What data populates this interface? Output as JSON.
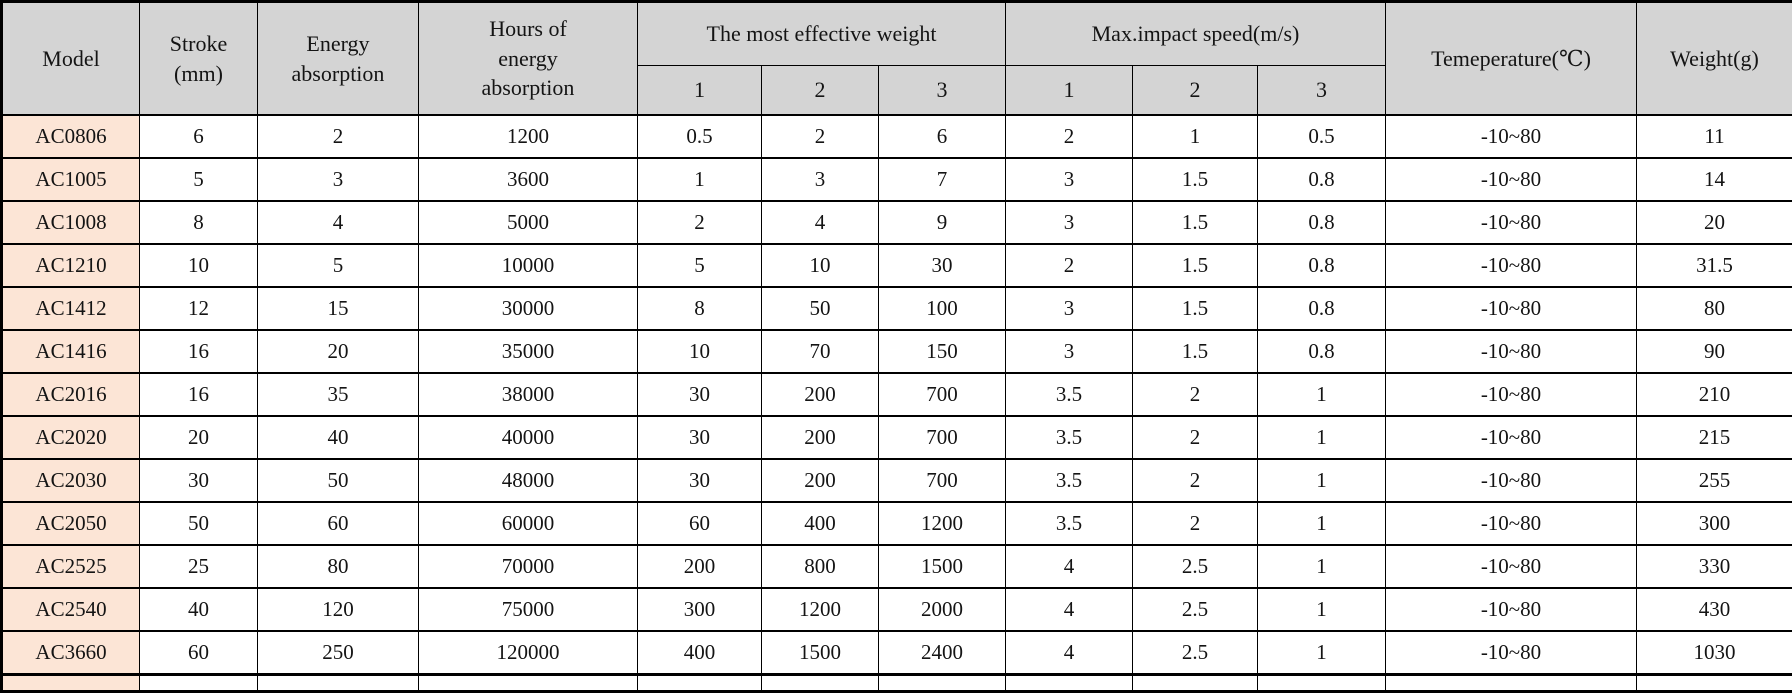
{
  "colors": {
    "header_bg": "#d4d4d4",
    "model_column_bg": "#fce5d6",
    "row_bg": "#ffffff",
    "border": "#000000",
    "text": "#141414"
  },
  "table": {
    "header": {
      "model": "Model",
      "stroke": "Stroke\n(mm)",
      "energy": "Energy\nabsorption",
      "hours": "Hours of\nenergy\nabsorption",
      "effective_weight_group": "The most effective weight",
      "impact_speed_group": "Max.impact speed(m/s)",
      "sub_labels": [
        "1",
        "2",
        "3"
      ],
      "temperature": "Temeperature(℃)",
      "weight": "Weight(g)"
    },
    "rows": [
      {
        "model": "AC0806",
        "stroke": "6",
        "energy": "2",
        "hours": "1200",
        "effective_weight": [
          "0.5",
          "2",
          "6"
        ],
        "impact_speed": [
          "2",
          "1",
          "0.5"
        ],
        "temperature": "-10~80",
        "weight": "11"
      },
      {
        "model": "AC1005",
        "stroke": "5",
        "energy": "3",
        "hours": "3600",
        "effective_weight": [
          "1",
          "3",
          "7"
        ],
        "impact_speed": [
          "3",
          "1.5",
          "0.8"
        ],
        "temperature": "-10~80",
        "weight": "14"
      },
      {
        "model": "AC1008",
        "stroke": "8",
        "energy": "4",
        "hours": "5000",
        "effective_weight": [
          "2",
          "4",
          "9"
        ],
        "impact_speed": [
          "3",
          "1.5",
          "0.8"
        ],
        "temperature": "-10~80",
        "weight": "20"
      },
      {
        "model": "AC1210",
        "stroke": "10",
        "energy": "5",
        "hours": "10000",
        "effective_weight": [
          "5",
          "10",
          "30"
        ],
        "impact_speed": [
          "2",
          "1.5",
          "0.8"
        ],
        "temperature": "-10~80",
        "weight": "31.5"
      },
      {
        "model": "AC1412",
        "stroke": "12",
        "energy": "15",
        "hours": "30000",
        "effective_weight": [
          "8",
          "50",
          "100"
        ],
        "impact_speed": [
          "3",
          "1.5",
          "0.8"
        ],
        "temperature": "-10~80",
        "weight": "80"
      },
      {
        "model": "AC1416",
        "stroke": "16",
        "energy": "20",
        "hours": "35000",
        "effective_weight": [
          "10",
          "70",
          "150"
        ],
        "impact_speed": [
          "3",
          "1.5",
          "0.8"
        ],
        "temperature": "-10~80",
        "weight": "90"
      },
      {
        "model": "AC2016",
        "stroke": "16",
        "energy": "35",
        "hours": "38000",
        "effective_weight": [
          "30",
          "200",
          "700"
        ],
        "impact_speed": [
          "3.5",
          "2",
          "1"
        ],
        "temperature": "-10~80",
        "weight": "210"
      },
      {
        "model": "AC2020",
        "stroke": "20",
        "energy": "40",
        "hours": "40000",
        "effective_weight": [
          "30",
          "200",
          "700"
        ],
        "impact_speed": [
          "3.5",
          "2",
          "1"
        ],
        "temperature": "-10~80",
        "weight": "215"
      },
      {
        "model": "AC2030",
        "stroke": "30",
        "energy": "50",
        "hours": "48000",
        "effective_weight": [
          "30",
          "200",
          "700"
        ],
        "impact_speed": [
          "3.5",
          "2",
          "1"
        ],
        "temperature": "-10~80",
        "weight": "255"
      },
      {
        "model": "AC2050",
        "stroke": "50",
        "energy": "60",
        "hours": "60000",
        "effective_weight": [
          "60",
          "400",
          "1200"
        ],
        "impact_speed": [
          "3.5",
          "2",
          "1"
        ],
        "temperature": "-10~80",
        "weight": "300"
      },
      {
        "model": "AC2525",
        "stroke": "25",
        "energy": "80",
        "hours": "70000",
        "effective_weight": [
          "200",
          "800",
          "1500"
        ],
        "impact_speed": [
          "4",
          "2.5",
          "1"
        ],
        "temperature": "-10~80",
        "weight": "330"
      },
      {
        "model": "AC2540",
        "stroke": "40",
        "energy": "120",
        "hours": "75000",
        "effective_weight": [
          "300",
          "1200",
          "2000"
        ],
        "impact_speed": [
          "4",
          "2.5",
          "1"
        ],
        "temperature": "-10~80",
        "weight": "430"
      },
      {
        "model": "AC3660",
        "stroke": "60",
        "energy": "250",
        "hours": "120000",
        "effective_weight": [
          "400",
          "1500",
          "2400"
        ],
        "impact_speed": [
          "4",
          "2.5",
          "1"
        ],
        "temperature": "-10~80",
        "weight": "1030"
      }
    ],
    "partial_row_visible": true
  }
}
